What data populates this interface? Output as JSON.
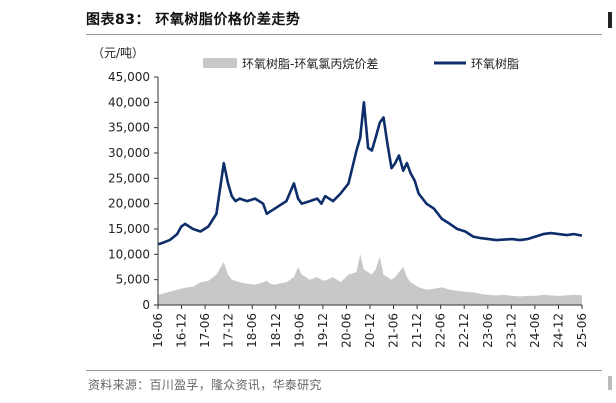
{
  "header": {
    "title": "图表83：  环氧树脂价格价差走势"
  },
  "footer": {
    "source": "资料来源：百川盈孚，隆众资讯，华泰研究"
  },
  "chart_data": {
    "type": "line",
    "ylabel": "（元/吨）",
    "ylim": [
      0,
      45000
    ],
    "yticks": [
      0,
      5000,
      10000,
      15000,
      20000,
      25000,
      30000,
      35000,
      40000,
      45000
    ],
    "ytick_labels": [
      "0",
      "5,000",
      "10,000",
      "15,000",
      "20,000",
      "25,000",
      "30,000",
      "35,000",
      "40,000",
      "45,000"
    ],
    "xticks": [
      "16-06",
      "16-12",
      "17-06",
      "17-12",
      "18-06",
      "18-12",
      "19-06",
      "19-12",
      "20-06",
      "20-12",
      "21-06",
      "21-12",
      "22-06",
      "22-12",
      "23-06",
      "23-12",
      "24-06",
      "24-12",
      "25-06"
    ],
    "x": [
      2016.42,
      2016.5,
      2016.67,
      2016.83,
      2016.92,
      2017.0,
      2017.17,
      2017.33,
      2017.5,
      2017.67,
      2017.83,
      2017.92,
      2018.0,
      2018.08,
      2018.17,
      2018.33,
      2018.5,
      2018.67,
      2018.75,
      2018.83,
      2018.92,
      2019.0,
      2019.17,
      2019.33,
      2019.42,
      2019.5,
      2019.67,
      2019.83,
      2019.92,
      2020.0,
      2020.17,
      2020.33,
      2020.5,
      2020.67,
      2020.75,
      2020.83,
      2020.92,
      2021.0,
      2021.08,
      2021.17,
      2021.25,
      2021.33,
      2021.42,
      2021.5,
      2021.58,
      2021.67,
      2021.75,
      2021.83,
      2021.92,
      2022.0,
      2022.17,
      2022.33,
      2022.5,
      2022.67,
      2022.83,
      2023.0,
      2023.17,
      2023.33,
      2023.5,
      2023.67,
      2023.83,
      2024.0,
      2024.17,
      2024.33,
      2024.5,
      2024.67,
      2024.83,
      2025.0,
      2025.17,
      2025.33,
      2025.5
    ],
    "series": [
      {
        "name": "环氧树脂-环氧氯丙烷价差",
        "color": "#c8c8c8",
        "style": "area",
        "values": [
          2000,
          2200,
          2600,
          3000,
          3200,
          3400,
          3600,
          4500,
          4800,
          6000,
          8500,
          6000,
          5000,
          4800,
          4500,
          4200,
          4000,
          4500,
          4800,
          4200,
          4000,
          4200,
          4500,
          5500,
          7500,
          6000,
          5000,
          5500,
          5000,
          4800,
          5500,
          4500,
          6000,
          6500,
          10000,
          7000,
          6500,
          6000,
          7000,
          9500,
          6000,
          5500,
          5000,
          5500,
          6500,
          7500,
          5500,
          4500,
          4000,
          3500,
          3000,
          3200,
          3500,
          3000,
          2800,
          2600,
          2500,
          2200,
          2000,
          1900,
          2000,
          1800,
          1700,
          1800,
          1800,
          2000,
          1900,
          1800,
          1900,
          2000,
          1900
        ]
      },
      {
        "name": "环氧树脂",
        "color": "#0d2d6b",
        "style": "line",
        "values": [
          12000,
          12200,
          12800,
          14000,
          15500,
          16000,
          15000,
          14500,
          15500,
          18000,
          28000,
          24000,
          21500,
          20500,
          21000,
          20500,
          21000,
          20000,
          18000,
          18500,
          19000,
          19500,
          20500,
          24000,
          21000,
          20000,
          20500,
          21000,
          20000,
          21500,
          20500,
          22000,
          24000,
          30500,
          33000,
          40000,
          31000,
          30500,
          33000,
          36000,
          37000,
          32000,
          27000,
          28000,
          29500,
          26500,
          28000,
          26000,
          24500,
          22000,
          20000,
          19000,
          17000,
          16000,
          15000,
          14500,
          13500,
          13200,
          13000,
          12800,
          12900,
          13000,
          12800,
          13000,
          13500,
          14000,
          14200,
          14000,
          13800,
          14000,
          13700
        ]
      }
    ],
    "legend": {
      "placement": "top",
      "items": [
        "环氧树脂-环氧氯丙烷价差",
        "环氧树脂"
      ]
    },
    "grid": false
  }
}
